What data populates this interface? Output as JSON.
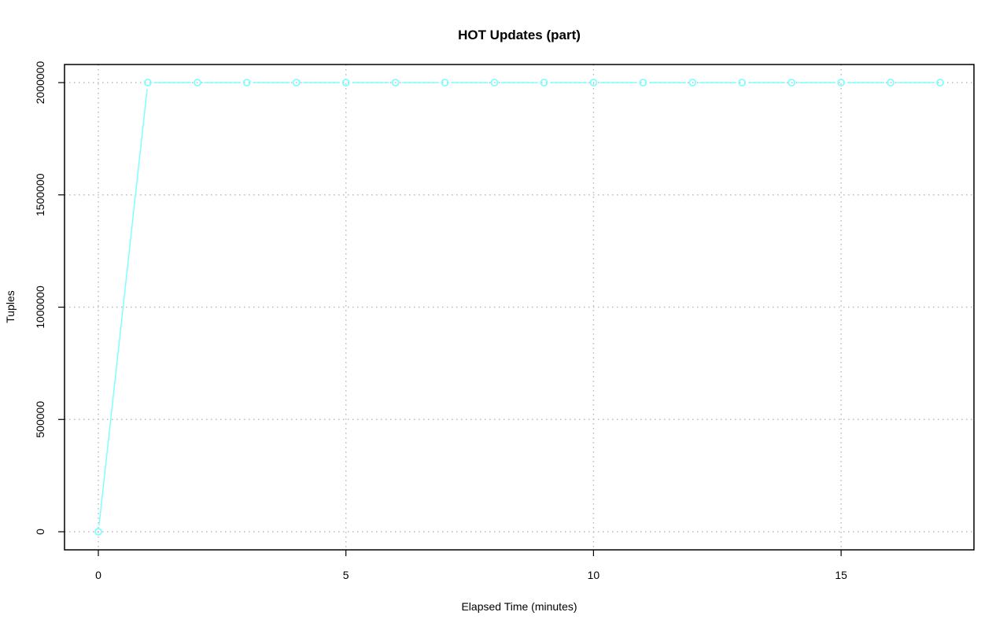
{
  "chart_data": {
    "type": "line",
    "title": "HOT Updates (part)",
    "xlabel": "Elapsed Time (minutes)",
    "ylabel": "Tuples",
    "xlim": [
      -0.7,
      17.7
    ],
    "ylim": [
      -80000,
      2080000
    ],
    "x_ticks": [
      0,
      5,
      10,
      15
    ],
    "y_ticks": [
      0,
      500000,
      1000000,
      1500000,
      2000000
    ],
    "x_tick_labels": [
      "0",
      "5",
      "10",
      "15"
    ],
    "y_tick_labels": [
      "0",
      "500000",
      "1000000",
      "1500000",
      "2000000"
    ],
    "grid": true,
    "legend": "none",
    "series": [
      {
        "color": "#80FFFF",
        "marker": "open-circle",
        "x": [
          0,
          1,
          2,
          3,
          4,
          5,
          6,
          7,
          8,
          9,
          10,
          11,
          12,
          13,
          14,
          15,
          16,
          17
        ],
        "y": [
          0,
          2000000,
          2000000,
          2000000,
          2000000,
          2000000,
          2000000,
          2000000,
          2000000,
          2000000,
          2000000,
          2000000,
          2000000,
          2000000,
          2000000,
          2000000,
          2000000,
          2000000
        ]
      }
    ]
  }
}
